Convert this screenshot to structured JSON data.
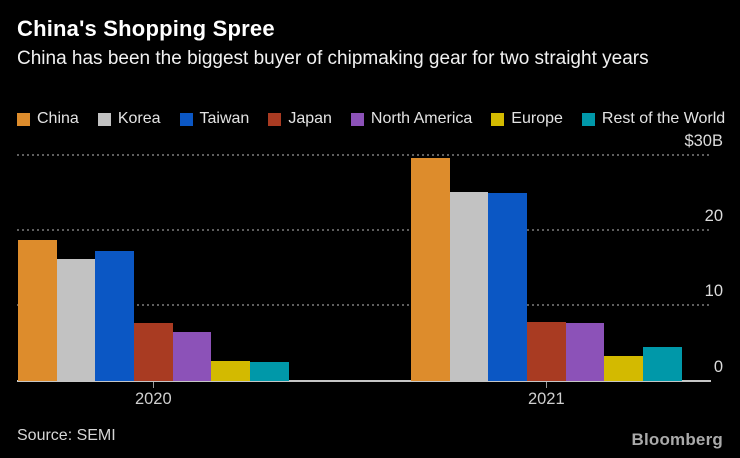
{
  "header": {
    "title": "China's Shopping Spree",
    "subtitle": "China has been the biggest buyer of chipmaking gear for two straight years"
  },
  "colors": {
    "background": "#000000",
    "title_text": "#ffffff",
    "axis_text": "#dcdcdc"
  },
  "chart_data": {
    "type": "bar",
    "categories": [
      "2020",
      "2021"
    ],
    "series": [
      {
        "name": "China",
        "color": "#DD8C2C",
        "values": [
          18.7,
          29.6
        ]
      },
      {
        "name": "Korea",
        "color": "#C2C2C2",
        "values": [
          16.1,
          25.0
        ]
      },
      {
        "name": "Taiwan",
        "color": "#0B57C4",
        "values": [
          17.2,
          24.9
        ]
      },
      {
        "name": "Japan",
        "color": "#A93B22",
        "values": [
          7.6,
          7.8
        ]
      },
      {
        "name": "North America",
        "color": "#8C52B8",
        "values": [
          6.5,
          7.6
        ]
      },
      {
        "name": "Europe",
        "color": "#D3BA00",
        "values": [
          2.6,
          3.2
        ]
      },
      {
        "name": "Rest of the World",
        "color": "#0098A9",
        "values": [
          2.4,
          4.4
        ]
      }
    ],
    "title": "China's Shopping Spree",
    "subtitle": "China has been the biggest buyer of chipmaking gear for two straight years",
    "xlabel": "",
    "ylabel": "",
    "y_axis": {
      "unit": "$B",
      "ticks": [
        "$30B",
        "20",
        "10",
        "0"
      ],
      "tick_values": [
        30,
        20,
        10,
        0
      ],
      "ylim": [
        0,
        30
      ],
      "labels_side": "right"
    },
    "grid": "dotted horizontal",
    "legend_position": "top"
  },
  "footer": {
    "source": "Source: SEMI",
    "brand": "Bloomberg"
  }
}
